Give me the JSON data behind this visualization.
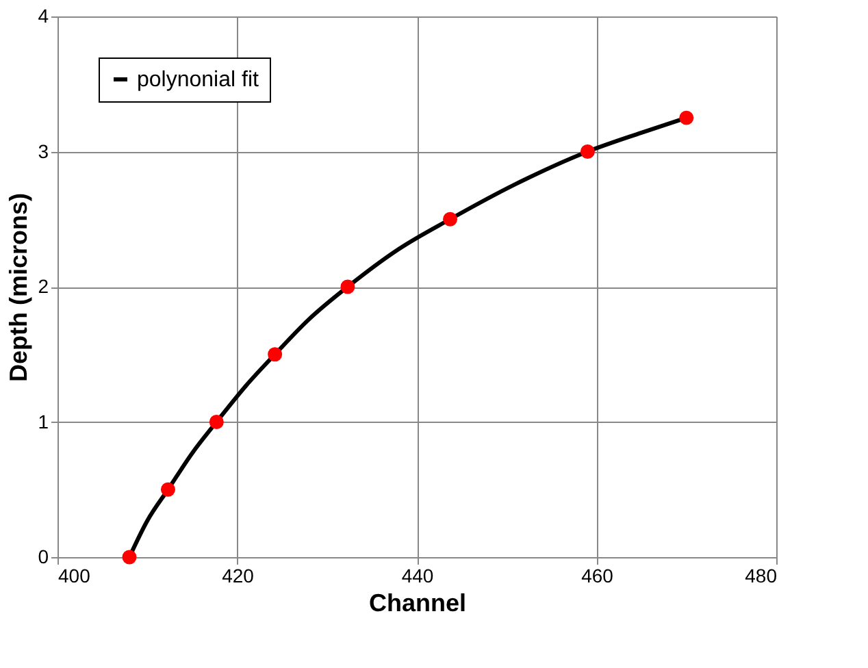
{
  "chart_data": {
    "type": "scatter",
    "xlabel": "Channel",
    "ylabel": "Depth (microns)",
    "xlim": [
      400,
      480
    ],
    "xticks": [
      400,
      420,
      440,
      460,
      480
    ],
    "ylim": [
      0,
      4
    ],
    "yticks": [
      0,
      1,
      2,
      3,
      4
    ],
    "grid": true,
    "legend": "top left",
    "series": [
      {
        "color": "#ff0000",
        "marker": "circle",
        "x": [
          408,
          412.3,
          417.7,
          424.2,
          432.3,
          443.7,
          459,
          470
        ],
        "values": [
          0,
          0.5,
          1.0,
          1.5,
          2.0,
          2.5,
          3.0,
          3.25
        ]
      },
      {
        "type": "line",
        "name": "polynonial fit",
        "color": "#000000",
        "line_style": "solid",
        "marker": "none",
        "x": [
          408,
          410,
          412.3,
          415,
          417.7,
          421,
          424.2,
          428,
          432.3,
          438,
          443.7,
          451,
          459,
          465,
          470
        ],
        "values": [
          0,
          0.27,
          0.5,
          0.77,
          1.0,
          1.27,
          1.5,
          1.76,
          2.0,
          2.28,
          2.5,
          2.76,
          3.0,
          3.14,
          3.25
        ]
      }
    ]
  }
}
